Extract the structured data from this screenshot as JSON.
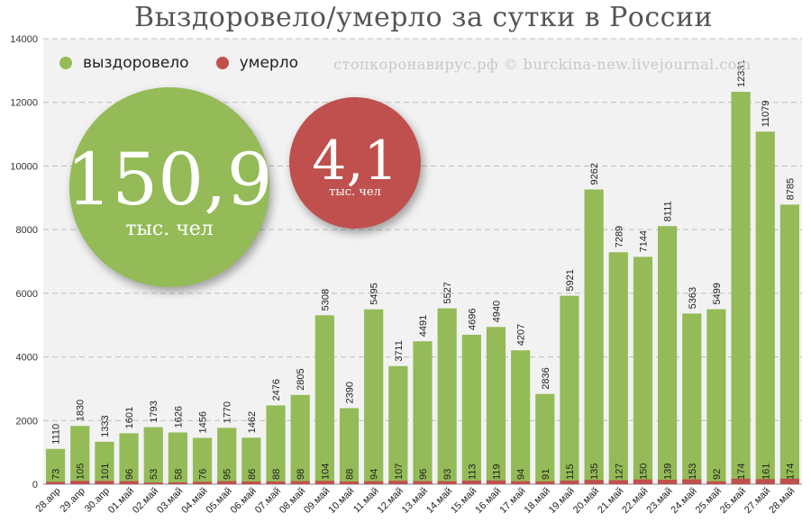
{
  "title": "Выздоровело/умерло за сутки в России",
  "legend": [
    {
      "label": "выздоровело",
      "color": "#94bb57"
    },
    {
      "label": "умерло",
      "color": "#c0504d"
    }
  ],
  "credit": "стопкоронавирус.рф © burckina-new.livejournal.com",
  "summary": {
    "recovered": {
      "value": "150,9",
      "unit": "тыс. чел"
    },
    "deaths": {
      "value": "4,1",
      "unit": "тыс. чел"
    }
  },
  "chart_data": {
    "type": "bar",
    "categories": [
      "28.апр",
      "29.апр",
      "30.апр",
      "01.май",
      "02.май",
      "03.май",
      "04.май",
      "05.май",
      "06.май",
      "07.май",
      "08.май",
      "09.май",
      "10.май",
      "11.май",
      "12.май",
      "13.май",
      "14.май",
      "15.май",
      "16.май",
      "17.май",
      "18.май",
      "19.май",
      "20.май",
      "21.май",
      "22.май",
      "23.май",
      "24.май",
      "25.май",
      "26.май",
      "27.май",
      "28.май"
    ],
    "series": [
      {
        "name": "выздоровело",
        "color": "#94bb57",
        "values": [
          1110,
          1830,
          1333,
          1601,
          1793,
          1626,
          1456,
          1770,
          1462,
          2476,
          2805,
          5308,
          2390,
          5495,
          3711,
          4491,
          5527,
          4696,
          4940,
          4207,
          2836,
          5921,
          9262,
          7289,
          7144,
          8111,
          5363,
          5499,
          12331,
          11079,
          8785
        ]
      },
      {
        "name": "умерло",
        "color": "#c0504d",
        "values": [
          73,
          105,
          101,
          96,
          53,
          58,
          76,
          95,
          86,
          88,
          98,
          104,
          88,
          94,
          107,
          96,
          93,
          113,
          119,
          94,
          91,
          115,
          135,
          127,
          150,
          139,
          153,
          92,
          174,
          161,
          174
        ]
      }
    ],
    "ylim": [
      0,
      14000
    ],
    "yticks": [
      0,
      2000,
      4000,
      6000,
      8000,
      10000,
      12000,
      14000
    ],
    "grid": true,
    "legend_position": "top-left"
  }
}
